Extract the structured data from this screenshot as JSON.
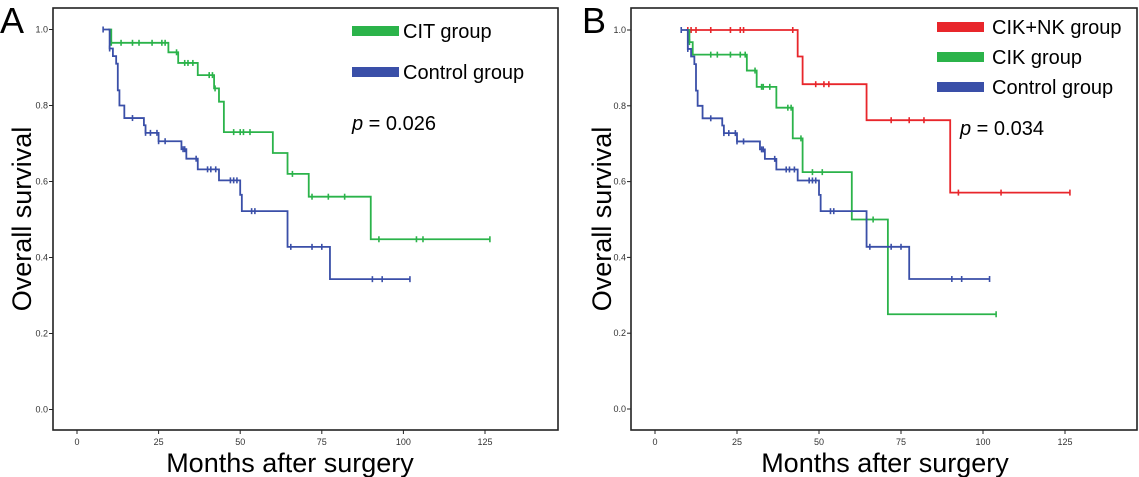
{
  "chart_data": [
    {
      "type": "line",
      "subtype": "kaplan-meier",
      "panel_label": "A",
      "xlabel": "Months after surgery",
      "ylabel": "Overall survival",
      "xlim": [
        -8,
        145
      ],
      "ylim": [
        -0.05,
        1.05
      ],
      "xticks": [
        "0",
        "25",
        "50",
        "75",
        "100",
        "125"
      ],
      "yticks": [
        "0.0",
        "0.2",
        "0.4",
        "0.6",
        "0.8",
        "1.0"
      ],
      "annotation": {
        "italic": "p",
        "text": " = 0.026"
      },
      "legend_position": "top-right",
      "series": [
        {
          "name": "CIT group",
          "color": "#2bb34a",
          "start": 9.5,
          "end": 126.5,
          "steps": [
            [
              10.5,
              0.965
            ],
            [
              28,
              0.94
            ],
            [
              31,
              0.912
            ],
            [
              37,
              0.88
            ],
            [
              42,
              0.845
            ],
            [
              43.5,
              0.81
            ],
            [
              45,
              0.73
            ],
            [
              60,
              0.675
            ],
            [
              64.5,
              0.62
            ],
            [
              71,
              0.56
            ],
            [
              90,
              0.448
            ]
          ],
          "censored": [
            10.5,
            13.5,
            17,
            19,
            23,
            26,
            27,
            30.5,
            33,
            34,
            35.5,
            40.5,
            41.5,
            42.3,
            48,
            50,
            51,
            53,
            66,
            72,
            77,
            82,
            92.5,
            104,
            106,
            126.5
          ]
        },
        {
          "name": "Control group",
          "color": "#3a4fa8",
          "start": 8,
          "end": 102,
          "steps": [
            [
              10,
              0.95
            ],
            [
              11,
              0.93
            ],
            [
              12,
              0.91
            ],
            [
              12.5,
              0.84
            ],
            [
              13,
              0.8
            ],
            [
              14.5,
              0.767
            ],
            [
              20.5,
              0.748
            ],
            [
              21,
              0.728
            ],
            [
              25,
              0.706
            ],
            [
              32,
              0.685
            ],
            [
              33.5,
              0.66
            ],
            [
              37,
              0.632
            ],
            [
              43.5,
              0.603
            ],
            [
              50,
              0.565
            ],
            [
              50.5,
              0.522
            ],
            [
              64.5,
              0.428
            ],
            [
              77.5,
              0.343
            ]
          ],
          "censored": [
            8,
            10,
            17,
            21,
            22.5,
            24.5,
            25,
            27,
            32.5,
            33,
            36.5,
            40,
            41,
            42.5,
            47,
            48,
            49,
            53.5,
            54.5,
            65.5,
            72,
            75,
            90.5,
            93.5,
            102
          ]
        }
      ]
    },
    {
      "type": "line",
      "subtype": "kaplan-meier",
      "panel_label": "B",
      "xlabel": "Months after surgery",
      "ylabel": "Overall survival",
      "xlim": [
        -8,
        145
      ],
      "ylim": [
        -0.05,
        1.05
      ],
      "xticks": [
        "0",
        "25",
        "50",
        "75",
        "100",
        "125"
      ],
      "yticks": [
        "0.0",
        "0.2",
        "0.4",
        "0.6",
        "0.8",
        "1.0"
      ],
      "annotation": {
        "italic": "p",
        "text": " = 0.034"
      },
      "legend_position": "top-right",
      "series": [
        {
          "name": "CIK+NK group",
          "color": "#e8262b",
          "start": 9.5,
          "end": 126.5,
          "steps": [
            [
              43.5,
              0.93
            ],
            [
              45,
              0.857
            ],
            [
              64.5,
              0.762
            ],
            [
              90,
              0.571
            ]
          ],
          "censored": [
            10,
            11,
            12.5,
            17,
            23,
            26,
            27,
            42,
            49,
            51.5,
            53,
            72,
            77.5,
            82,
            92.5,
            105.5,
            126.5
          ]
        },
        {
          "name": "CIK group",
          "color": "#2bb34a",
          "start": 9.5,
          "end": 104,
          "steps": [
            [
              10.5,
              0.968
            ],
            [
              11.5,
              0.935
            ],
            [
              28,
              0.893
            ],
            [
              31,
              0.85
            ],
            [
              37,
              0.795
            ],
            [
              42,
              0.714
            ],
            [
              45,
              0.625
            ],
            [
              60,
              0.5
            ],
            [
              71,
              0.25
            ]
          ],
          "censored": [
            10.5,
            17,
            19,
            23,
            26,
            27.5,
            30.5,
            32.5,
            33,
            35,
            40.5,
            41.5,
            44.5,
            48,
            51,
            64.5,
            66.5,
            104
          ]
        },
        {
          "name": "Control group",
          "color": "#3a4fa8",
          "start": 8,
          "end": 102,
          "steps": [
            [
              10,
              0.95
            ],
            [
              11,
              0.93
            ],
            [
              12,
              0.91
            ],
            [
              12.5,
              0.84
            ],
            [
              13,
              0.8
            ],
            [
              14.5,
              0.767
            ],
            [
              20.5,
              0.748
            ],
            [
              21,
              0.728
            ],
            [
              25,
              0.706
            ],
            [
              32,
              0.685
            ],
            [
              33.5,
              0.66
            ],
            [
              37,
              0.632
            ],
            [
              43.5,
              0.603
            ],
            [
              50,
              0.565
            ],
            [
              50.5,
              0.522
            ],
            [
              64.5,
              0.428
            ],
            [
              77.5,
              0.343
            ]
          ],
          "censored": [
            8,
            10,
            17,
            21,
            22.5,
            24.5,
            25,
            27,
            32.5,
            33,
            36.5,
            40,
            41,
            42.5,
            47,
            48,
            49,
            53.5,
            54.5,
            65.5,
            72,
            75,
            90.5,
            93.5,
            102
          ]
        }
      ]
    }
  ]
}
